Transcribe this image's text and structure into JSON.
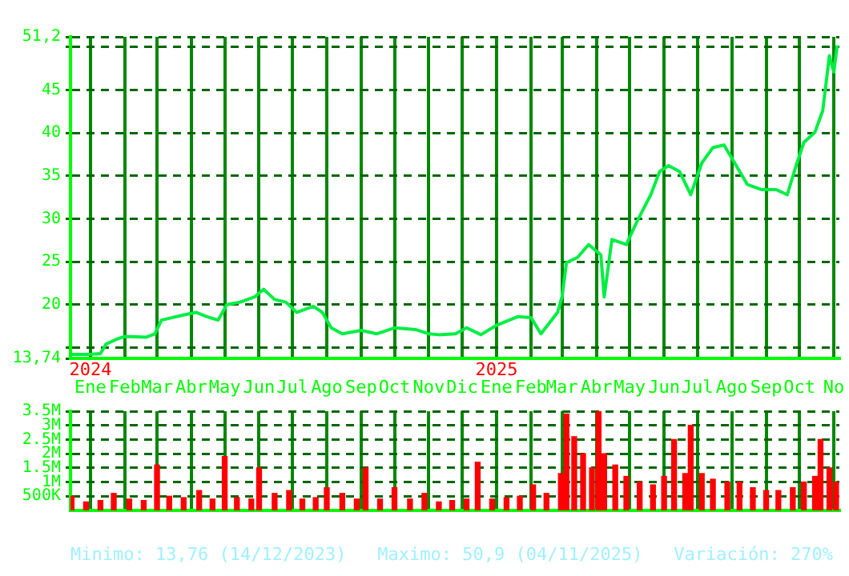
{
  "chart_data": [
    {
      "type": "line",
      "color": "#00ee44",
      "x": [
        "2023-12-14",
        "2023-12-31",
        "2024-01-10",
        "2024-01-15",
        "2024-01-25",
        "2024-02-01",
        "2024-02-20",
        "2024-02-28",
        "2024-03-05",
        "2024-03-15",
        "2024-03-25",
        "2024-04-05",
        "2024-04-15",
        "2024-04-25",
        "2024-05-03",
        "2024-05-15",
        "2024-05-28",
        "2024-06-05",
        "2024-06-15",
        "2024-06-25",
        "2024-07-05",
        "2024-07-20",
        "2024-07-28",
        "2024-08-05",
        "2024-08-15",
        "2024-09-01",
        "2024-09-15",
        "2024-10-01",
        "2024-10-20",
        "2024-11-01",
        "2024-11-10",
        "2024-11-25",
        "2024-12-05",
        "2024-12-18",
        "2025-01-01",
        "2025-01-20",
        "2025-02-01",
        "2025-02-10",
        "2025-02-25",
        "2025-03-01",
        "2025-03-05",
        "2025-03-15",
        "2025-03-25",
        "2025-04-05",
        "2025-04-08",
        "2025-04-15",
        "2025-04-28",
        "2025-05-08",
        "2025-05-20",
        "2025-05-28",
        "2025-06-05",
        "2025-06-15",
        "2025-06-25",
        "2025-07-05",
        "2025-07-15",
        "2025-07-25",
        "2025-08-05",
        "2025-08-15",
        "2025-08-28",
        "2025-09-10",
        "2025-09-20",
        "2025-09-28",
        "2025-10-05",
        "2025-10-15",
        "2025-10-22",
        "2025-10-28",
        "2025-11-01",
        "2025-11-04"
      ],
      "values": [
        14.2,
        14.2,
        14.3,
        15.4,
        16.0,
        16.3,
        16.2,
        16.6,
        18.2,
        18.5,
        18.8,
        19.1,
        18.6,
        18.2,
        20.0,
        20.3,
        20.9,
        21.8,
        20.6,
        20.3,
        19.1,
        19.8,
        19.1,
        17.3,
        16.6,
        17.0,
        16.6,
        17.3,
        17.1,
        16.6,
        16.5,
        16.6,
        17.3,
        16.5,
        17.6,
        18.6,
        18.5,
        16.6,
        19.1,
        20.9,
        24.9,
        25.5,
        27.0,
        25.8,
        20.9,
        27.6,
        27.0,
        29.8,
        32.8,
        35.5,
        36.2,
        35.5,
        32.8,
        36.5,
        38.3,
        38.6,
        36.2,
        34.0,
        33.4,
        33.4,
        32.8,
        36.2,
        38.9,
        40.1,
        42.6,
        49.0,
        47.1,
        50.2
      ],
      "xlim": [
        "2023-12-14",
        "2025-11-06"
      ],
      "xticks": [
        {
          "value": "2024-01-01",
          "label": "2024\nEne"
        },
        {
          "value": "2024-02-01",
          "label": "Feb"
        },
        {
          "value": "2024-03-01",
          "label": "Mar"
        },
        {
          "value": "2024-04-01",
          "label": "Abr"
        },
        {
          "value": "2024-05-01",
          "label": "May"
        },
        {
          "value": "2024-06-01",
          "label": "Jun"
        },
        {
          "value": "2024-07-01",
          "label": "Jul"
        },
        {
          "value": "2024-08-01",
          "label": "Ago"
        },
        {
          "value": "2024-09-01",
          "label": "Sep"
        },
        {
          "value": "2024-10-01",
          "label": "Oct"
        },
        {
          "value": "2024-11-01",
          "label": "Nov"
        },
        {
          "value": "2024-12-01",
          "label": "Dic"
        },
        {
          "value": "2025-01-01",
          "label": "2025\nEne"
        },
        {
          "value": "2025-02-01",
          "label": "Feb"
        },
        {
          "value": "2025-03-01",
          "label": "Mar"
        },
        {
          "value": "2025-04-01",
          "label": "Abr"
        },
        {
          "value": "2025-05-01",
          "label": "May"
        },
        {
          "value": "2025-06-01",
          "label": "Jun"
        },
        {
          "value": "2025-07-01",
          "label": "Jul"
        },
        {
          "value": "2025-08-01",
          "label": "Ago"
        },
        {
          "value": "2025-09-01",
          "label": "Sep"
        },
        {
          "value": "2025-10-01",
          "label": "Oct"
        },
        {
          "value": "2025-11-01",
          "label": "No"
        }
      ],
      "ylim": [
        13.74,
        51.2
      ],
      "yticks": [
        {
          "value": 13.74,
          "label": "13,74"
        },
        {
          "value": 15,
          "label": null
        },
        20,
        25,
        30,
        35,
        40,
        45,
        {
          "value": 50,
          "label": null
        },
        {
          "value": 51.2,
          "label": "51,2"
        }
      ],
      "grid": true
    },
    {
      "type": "bar",
      "color": "#ff0000",
      "tick_labels": "y",
      "x": [
        "2023-12-15",
        "2023-12-28",
        "2024-01-10",
        "2024-01-22",
        "2024-02-05",
        "2024-02-18",
        "2024-03-01",
        "2024-03-12",
        "2024-03-25",
        "2024-04-08",
        "2024-04-20",
        "2024-05-01",
        "2024-05-12",
        "2024-05-25",
        "2024-06-01",
        "2024-06-15",
        "2024-06-28",
        "2024-07-10",
        "2024-07-22",
        "2024-08-01",
        "2024-08-15",
        "2024-08-28",
        "2024-09-05",
        "2024-09-18",
        "2024-10-01",
        "2024-10-15",
        "2024-10-28",
        "2024-11-10",
        "2024-11-22",
        "2024-12-05",
        "2024-12-15",
        "2024-12-28",
        "2025-01-10",
        "2025-01-22",
        "2025-02-03",
        "2025-02-15",
        "2025-02-28",
        "2025-03-05",
        "2025-03-12",
        "2025-03-20",
        "2025-03-28",
        "2025-04-03",
        "2025-04-08",
        "2025-04-18",
        "2025-04-28",
        "2025-05-10",
        "2025-05-22",
        "2025-06-01",
        "2025-06-10",
        "2025-06-20",
        "2025-06-25",
        "2025-07-05",
        "2025-07-15",
        "2025-07-28",
        "2025-08-08",
        "2025-08-20",
        "2025-09-01",
        "2025-09-12",
        "2025-09-25",
        "2025-10-05",
        "2025-10-15",
        "2025-10-20",
        "2025-10-28",
        "2025-11-03"
      ],
      "values": [
        500000,
        300000,
        350000,
        600000,
        400000,
        350000,
        1600000,
        500000,
        450000,
        700000,
        400000,
        1900000,
        450000,
        400000,
        1500000,
        600000,
        700000,
        400000,
        450000,
        800000,
        600000,
        400000,
        1500000,
        400000,
        800000,
        400000,
        600000,
        300000,
        350000,
        400000,
        1700000,
        400000,
        450000,
        500000,
        900000,
        600000,
        1300000,
        3400000,
        2600000,
        2000000,
        1500000,
        3500000,
        2000000,
        1600000,
        1200000,
        1000000,
        900000,
        1200000,
        2500000,
        1300000,
        3000000,
        1300000,
        1100000,
        1000000,
        1000000,
        800000,
        700000,
        700000,
        800000,
        1000000,
        1200000,
        2500000,
        1500000,
        1000000
      ],
      "xlim": [
        "2023-12-14",
        "2025-11-06"
      ],
      "xticks": [
        {
          "value": "2024-01-01",
          "label": null
        },
        {
          "value": "2024-02-01",
          "label": null
        },
        {
          "value": "2024-03-01",
          "label": null
        },
        {
          "value": "2024-04-01",
          "label": null
        },
        {
          "value": "2024-05-01",
          "label": null
        },
        {
          "value": "2024-06-01",
          "label": null
        },
        {
          "value": "2024-07-01",
          "label": null
        },
        {
          "value": "2024-08-01",
          "label": null
        },
        {
          "value": "2024-09-01",
          "label": null
        },
        {
          "value": "2024-10-01",
          "label": null
        },
        {
          "value": "2024-11-01",
          "label": null
        },
        {
          "value": "2024-12-01",
          "label": null
        },
        {
          "value": "2025-01-01",
          "label": null
        },
        {
          "value": "2025-02-01",
          "label": null
        },
        {
          "value": "2025-03-01",
          "label": null
        },
        {
          "value": "2025-04-01",
          "label": null
        },
        {
          "value": "2025-05-01",
          "label": null
        },
        {
          "value": "2025-06-01",
          "label": null
        },
        {
          "value": "2025-07-01",
          "label": null
        },
        {
          "value": "2025-08-01",
          "label": null
        },
        {
          "value": "2025-09-01",
          "label": null
        },
        {
          "value": "2025-10-01",
          "label": null
        },
        {
          "value": "2025-11-01",
          "label": null
        }
      ],
      "ylim": [
        0,
        3500000
      ],
      "yticks": [
        {
          "value": 500000,
          "label": "500K"
        },
        {
          "value": 1000000,
          "label": "1M"
        },
        {
          "value": 1500000,
          "label": "1.5M"
        },
        {
          "value": 2000000,
          "label": "2M"
        },
        {
          "value": 2500000,
          "label": "2.5M"
        },
        {
          "value": 3000000,
          "label": "3M"
        },
        {
          "value": 3500000,
          "label": "3.5M"
        }
      ],
      "grid": true,
      "annotations": [
        "Minimo: 13,76 (14/12/2023)",
        "Maximo: 50,9 (04/11/2025)",
        "Variación: 270%"
      ]
    }
  ]
}
